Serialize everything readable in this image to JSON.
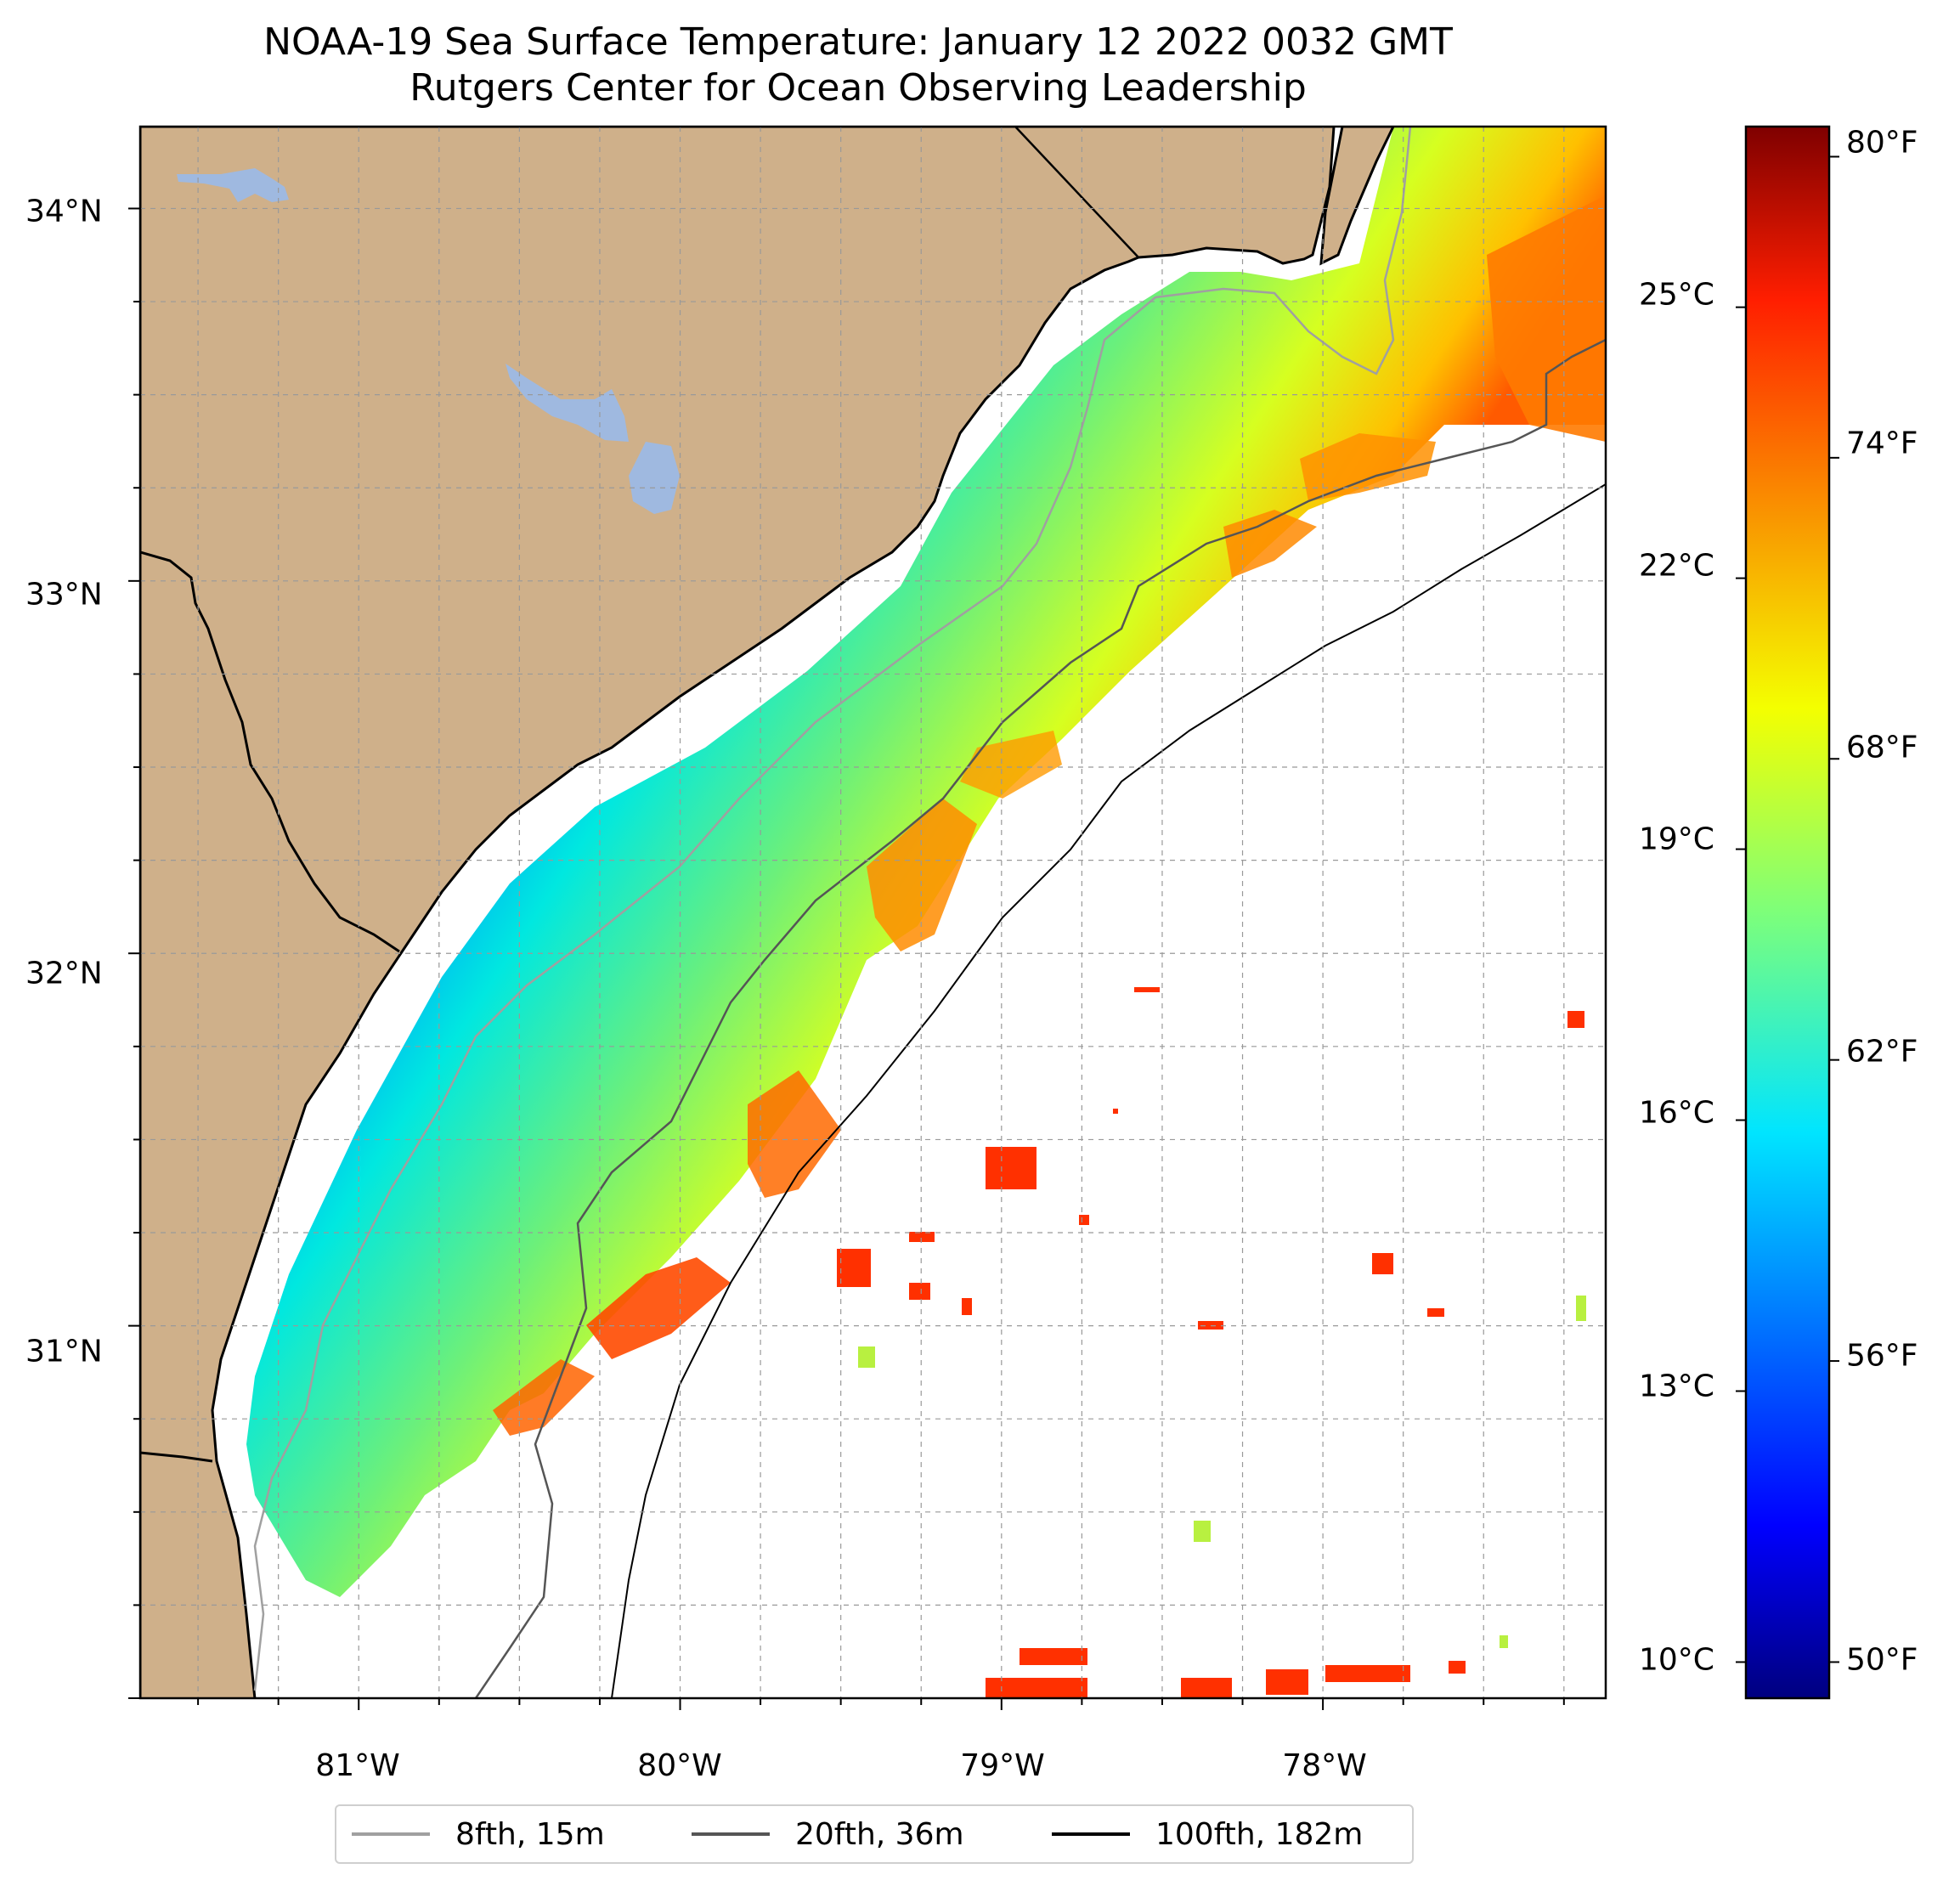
{
  "title": {
    "line1": "NOAA-19 Sea Surface Temperature: January 12 2022 0032 GMT",
    "line2": "Rutgers Center for Ocean Observing Leadership"
  },
  "map": {
    "lon_range": [
      -81.68,
      -77.12
    ],
    "lat_range": [
      30.0,
      34.22
    ],
    "lon_ticks": [
      {
        "value": -81,
        "label": "81°W"
      },
      {
        "value": -80,
        "label": "80°W"
      },
      {
        "value": -79,
        "label": "79°W"
      },
      {
        "value": -78,
        "label": "78°W"
      }
    ],
    "lat_ticks": [
      {
        "value": 31,
        "label": "31°N"
      },
      {
        "value": 32,
        "label": "32°N"
      },
      {
        "value": 33,
        "label": "33°N"
      },
      {
        "value": 34,
        "label": "34°N"
      }
    ],
    "gridlines": true,
    "land_color": "#cfb08a",
    "lake_color": "#9fb9e0"
  },
  "colorbar": {
    "colormap": "jet",
    "range_c": [
      9.6,
      27.0
    ],
    "celsius_ticks": [
      {
        "value": 10,
        "label": "10°C"
      },
      {
        "value": 13,
        "label": "13°C"
      },
      {
        "value": 16,
        "label": "16°C"
      },
      {
        "value": 19,
        "label": "19°C"
      },
      {
        "value": 22,
        "label": "22°C"
      },
      {
        "value": 25,
        "label": "25°C"
      }
    ],
    "fahrenheit_ticks": [
      {
        "value": 50,
        "label": "50°F"
      },
      {
        "value": 56,
        "label": "56°F"
      },
      {
        "value": 62,
        "label": "62°F"
      },
      {
        "value": 68,
        "label": "68°F"
      },
      {
        "value": 74,
        "label": "74°F"
      },
      {
        "value": 80,
        "label": "80°F"
      }
    ]
  },
  "legend": {
    "placement": "bottom-center",
    "items": [
      {
        "label": "8fth, 15m",
        "color": "#a0a0a0"
      },
      {
        "label": "20fth, 36m",
        "color": "#555555"
      },
      {
        "label": "100fth, 182m",
        "color": "#000000"
      }
    ]
  }
}
